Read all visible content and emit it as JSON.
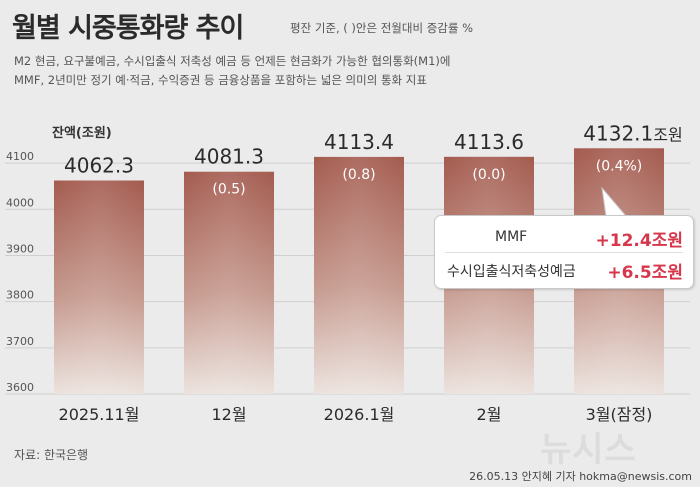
{
  "title": "월별 시중통화량 추이",
  "subtitle_note": "평잔 기준, ( )안은 전월대비 증감률 %",
  "description": [
    "M2 현금, 요구불예금, 수시입출식 저축성 예금 등 언제든 현금화가 가능한 협의통화(M1)에",
    "MMF, 2년미만 정기 예·적금, 수익증권 등 금융상품을 포함하는 넓은 의미의 통화 지표"
  ],
  "callout": {
    "rows": [
      {
        "label": "MMF",
        "value": "+12.4조원"
      },
      {
        "label": "수시입출식저축성예금",
        "value": "+6.5조원"
      }
    ]
  },
  "source": "자료: 한국은행",
  "credit": "26.05.13 안지혜 기자 hokma@newsis.com",
  "watermark": "뉴시스",
  "colors": {
    "bar_top": "#a45b4f",
    "bar_bottom": "#e7dbd5",
    "highlight": "#d7374b"
  },
  "chart_data": {
    "type": "bar",
    "ylabel": "잔액(조원)",
    "categories": [
      "2025.11월",
      "12월",
      "2026.1월",
      "2월",
      "3월(잠정)"
    ],
    "values": [
      4062.3,
      4081.3,
      4113.4,
      4113.6,
      4132.1
    ],
    "value_labels": [
      "4062.3",
      "4081.3",
      "4113.4",
      "4113.6",
      "4132.1"
    ],
    "value_unit_last": "조원",
    "change_labels": [
      "",
      "(0.5)",
      "(0.8)",
      "(0.0)",
      "(0.4%)"
    ],
    "yticks": [
      3600,
      3700,
      3800,
      3900,
      4000,
      4100
    ],
    "ylim": [
      3600,
      4150
    ],
    "grid": true
  }
}
